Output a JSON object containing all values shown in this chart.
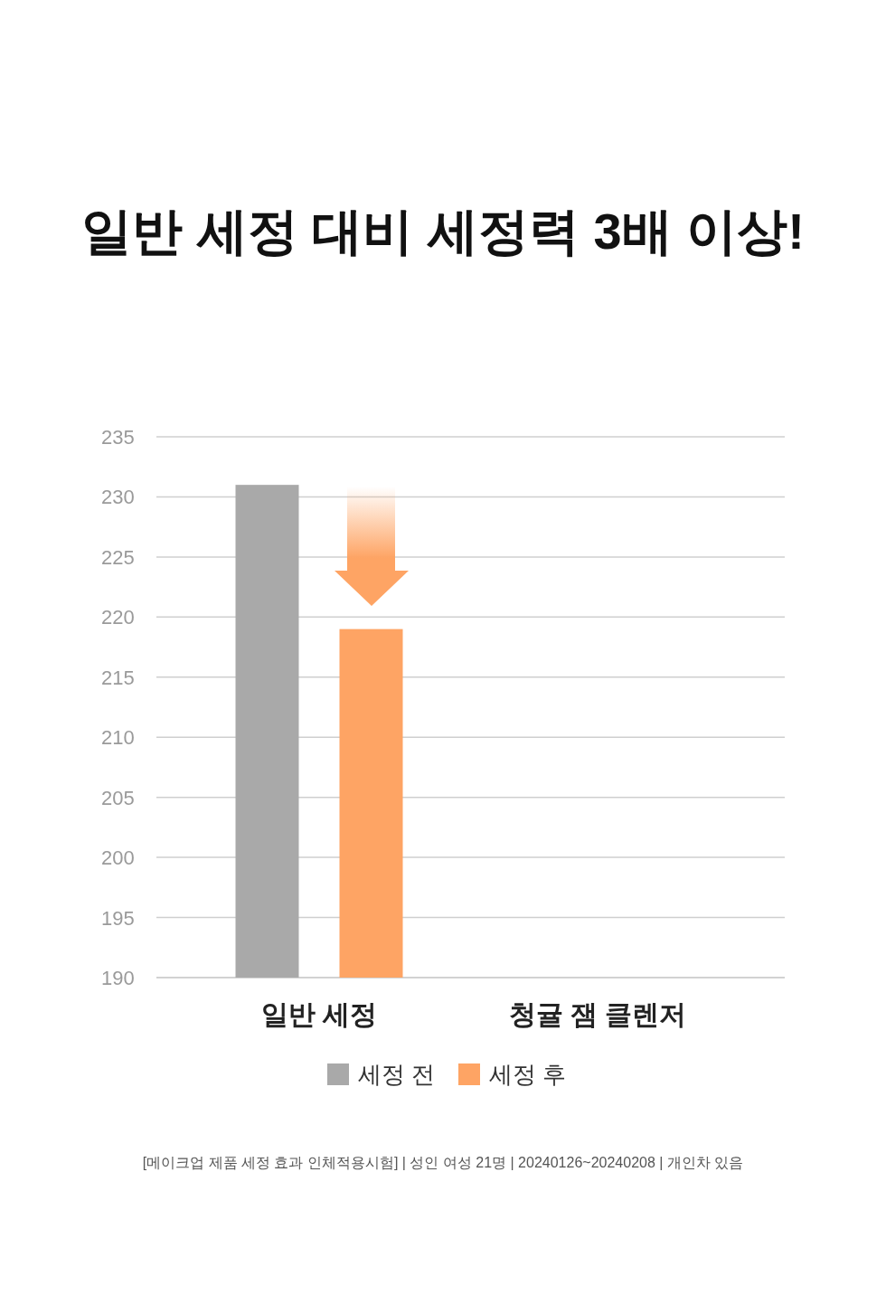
{
  "chart_data": {
    "type": "bar",
    "title": "일반 세정 대비 세정력 3배 이상!",
    "categories": [
      "일반 세정",
      "청귤 잼 클렌저"
    ],
    "series": [
      {
        "name": "세정 전",
        "color": "#a9a9a9",
        "values": [
          231,
          null
        ]
      },
      {
        "name": "세정 후",
        "color": "#fea464",
        "values": [
          219,
          null
        ]
      }
    ],
    "ylim": [
      190,
      235
    ],
    "yticks": [
      190,
      195,
      200,
      205,
      210,
      215,
      220,
      225,
      230,
      235
    ],
    "grid": "y",
    "legend": "bottom",
    "annotations": [
      "[메이크업 제품 세정 효과 인체적용시험] | 성인 여성 21명 | 20240126~20240208 | 개인차 있음"
    ]
  }
}
